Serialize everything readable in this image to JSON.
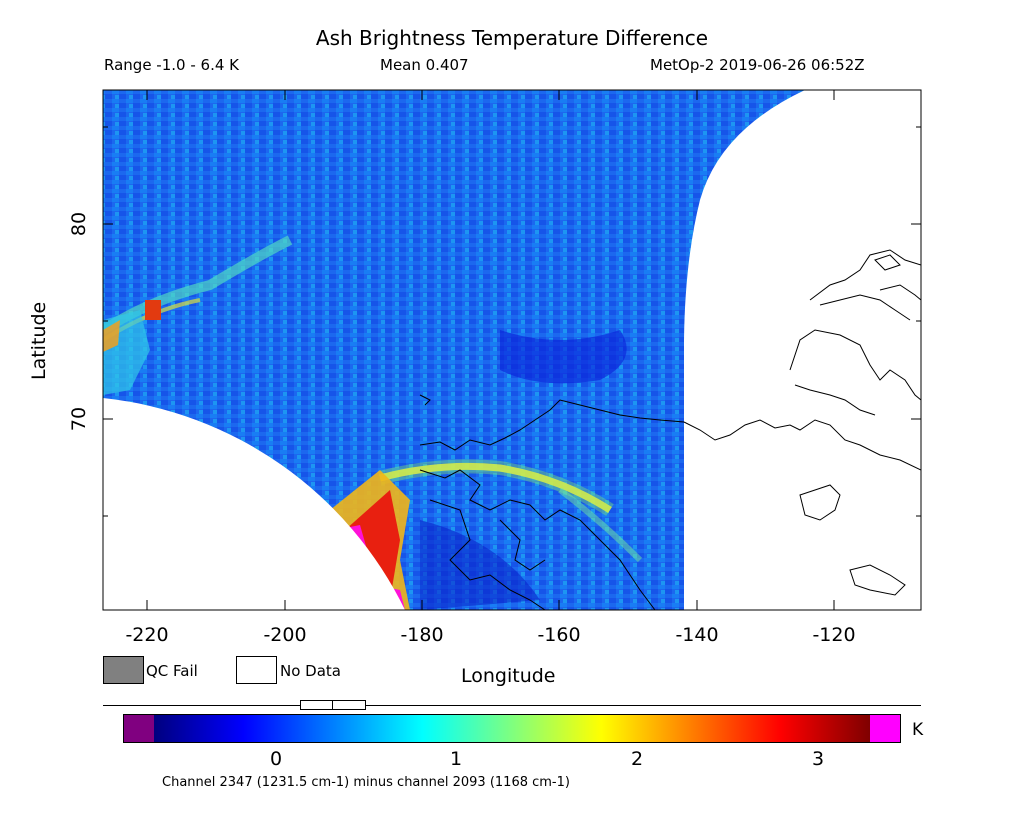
{
  "header": {
    "title": "Ash Brightness Temperature Difference",
    "range": "Range -1.0 - 6.4 K",
    "mean": "Mean 0.407",
    "satellite_time": "MetOp-2 2019-06-26 06:52Z"
  },
  "axes": {
    "xlabel": "Longitude",
    "ylabel": "Latitude",
    "xticks": [
      "-220",
      "-200",
      "-180",
      "-160",
      "-140",
      "-120"
    ],
    "yticks": [
      "80",
      "70"
    ],
    "xlim": [
      -226,
      -109
    ],
    "ylim": [
      60,
      87
    ]
  },
  "legend": {
    "qc_fail": "QC Fail",
    "no_data": "No Data",
    "qc_color": "#808080",
    "no_data_color": "#ffffff"
  },
  "colorbar": {
    "unit": "K",
    "ticks": [
      "0",
      "1",
      "2",
      "3"
    ],
    "range": [
      -0.67,
      3.33
    ],
    "under_color": "#800080",
    "over_color": "#ff00ff",
    "stops": [
      "#00007f",
      "#0000ff",
      "#007fff",
      "#00ffff",
      "#7fff7f",
      "#ffff00",
      "#ff7f00",
      "#ff0000",
      "#7f0000"
    ]
  },
  "footer": {
    "note": "Channel 2347 (1231.5 cm-1) minus channel 2093 (1168 cm-1)"
  },
  "map": {
    "no_data_regions": [
      "lower-left swath gap",
      "right of swath edge"
    ],
    "coastlines": "Alaska, northern Canada and Canadian Arctic islands",
    "features": [
      "elevated values along the Chukotka / Bering region",
      "high values (red/magenta) near -190, 63",
      "yellow/green plume arc from -185, 67 to -150, 64",
      "faint green/yellow streak in the upper-left"
    ]
  }
}
